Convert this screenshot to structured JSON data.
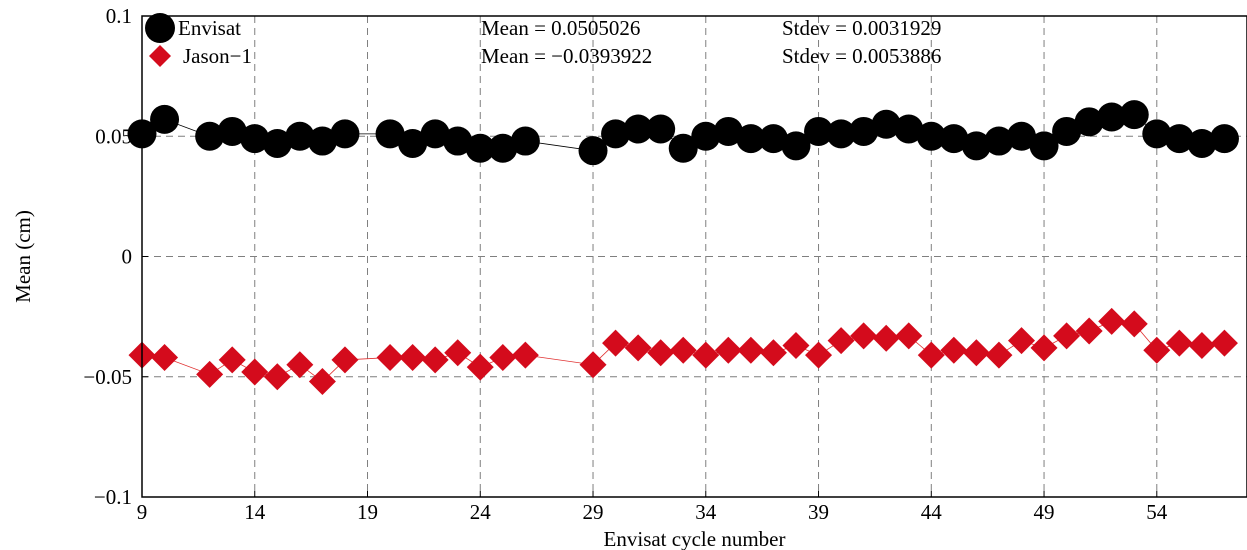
{
  "chart_data": {
    "type": "scatter",
    "xlabel": "Envisat cycle number",
    "ylabel": "Mean (cm)",
    "xlim": [
      9,
      58
    ],
    "ylim": [
      -0.1,
      0.1
    ],
    "xticks": [
      9,
      14,
      19,
      24,
      29,
      34,
      39,
      44,
      49,
      54
    ],
    "yticks": [
      0.1,
      0.05,
      0,
      -0.05,
      -0.1
    ],
    "ytick_labels": [
      "0.1",
      "0.05",
      "0",
      "−0.05",
      "−0.1"
    ],
    "grid": true,
    "legend_position": "top-left",
    "series": [
      {
        "name": "Envisat",
        "marker": "circle",
        "color": "#000000",
        "line_color": "#000000",
        "stats_text": "Mean = 0.0505026",
        "stdev_text": "Stdev = 0.0031929",
        "x": [
          9,
          10,
          12,
          13,
          14,
          15,
          16,
          17,
          18,
          20,
          21,
          22,
          23,
          24,
          25,
          26,
          29,
          30,
          31,
          32,
          33,
          34,
          35,
          36,
          37,
          38,
          39,
          40,
          41,
          42,
          43,
          44,
          45,
          46,
          47,
          48,
          49,
          50,
          51,
          52,
          53,
          54,
          55,
          56,
          57
        ],
        "y": [
          0.051,
          0.057,
          0.05,
          0.052,
          0.049,
          0.047,
          0.05,
          0.048,
          0.051,
          0.051,
          0.047,
          0.051,
          0.048,
          0.045,
          0.045,
          0.048,
          0.044,
          0.051,
          0.053,
          0.053,
          0.045,
          0.05,
          0.052,
          0.049,
          0.049,
          0.046,
          0.052,
          0.051,
          0.052,
          0.055,
          0.053,
          0.05,
          0.049,
          0.046,
          0.048,
          0.05,
          0.046,
          0.052,
          0.056,
          0.058,
          0.059,
          0.051,
          0.049,
          0.047,
          0.049
        ]
      },
      {
        "name": "Jason−1",
        "marker": "diamond",
        "color": "#d40b1c",
        "line_color": "#e03030",
        "stats_text": "Mean = −0.0393922",
        "stdev_text": "Stdev = 0.0053886",
        "x": [
          9,
          10,
          12,
          13,
          14,
          15,
          16,
          17,
          18,
          20,
          21,
          22,
          23,
          24,
          25,
          26,
          29,
          30,
          31,
          32,
          33,
          34,
          35,
          36,
          37,
          38,
          39,
          40,
          41,
          42,
          43,
          44,
          45,
          46,
          47,
          48,
          49,
          50,
          51,
          52,
          53,
          54,
          55,
          56,
          57
        ],
        "y": [
          -0.041,
          -0.042,
          -0.049,
          -0.043,
          -0.048,
          -0.05,
          -0.045,
          -0.052,
          -0.043,
          -0.042,
          -0.042,
          -0.043,
          -0.04,
          -0.046,
          -0.042,
          -0.041,
          -0.045,
          -0.036,
          -0.038,
          -0.04,
          -0.039,
          -0.041,
          -0.039,
          -0.039,
          -0.04,
          -0.037,
          -0.041,
          -0.035,
          -0.033,
          -0.034,
          -0.033,
          -0.041,
          -0.039,
          -0.04,
          -0.041,
          -0.035,
          -0.038,
          -0.033,
          -0.031,
          -0.027,
          -0.028,
          -0.039,
          -0.036,
          -0.037,
          -0.036
        ]
      }
    ]
  }
}
